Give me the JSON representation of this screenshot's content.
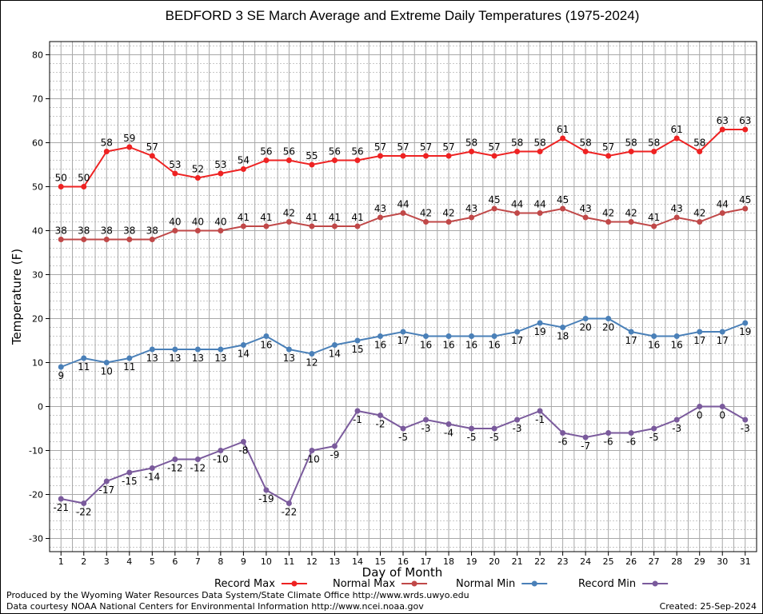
{
  "chart_data": {
    "type": "line",
    "title": "BEDFORD 3 SE March Average and Extreme Daily Temperatures (1975-2024)",
    "xlabel": "Day of Month",
    "ylabel": "Temperature (F)",
    "x": [
      1,
      2,
      3,
      4,
      5,
      6,
      7,
      8,
      9,
      10,
      11,
      12,
      13,
      14,
      15,
      16,
      17,
      18,
      19,
      20,
      21,
      22,
      23,
      24,
      25,
      26,
      27,
      28,
      29,
      30,
      31
    ],
    "xlim": [
      0.5,
      31.5
    ],
    "ylim": [
      -33,
      83
    ],
    "yticks": [
      -30,
      -20,
      -10,
      0,
      10,
      20,
      30,
      40,
      50,
      60,
      70,
      80
    ],
    "grid": true,
    "legend_position": "bottom",
    "series": [
      {
        "name": "Record Max",
        "color": "#ee2222",
        "label_pos": "above",
        "values": [
          50,
          50,
          58,
          59,
          57,
          53,
          52,
          53,
          54,
          56,
          56,
          55,
          56,
          56,
          57,
          57,
          57,
          57,
          58,
          57,
          58,
          58,
          61,
          58,
          57,
          58,
          58,
          61,
          58,
          63,
          63
        ]
      },
      {
        "name": "Normal Max",
        "color": "#c04848",
        "label_pos": "above",
        "values": [
          38,
          38,
          38,
          38,
          38,
          40,
          40,
          40,
          41,
          41,
          42,
          41,
          41,
          41,
          43,
          44,
          42,
          42,
          43,
          45,
          44,
          44,
          45,
          43,
          42,
          42,
          41,
          43,
          42,
          44,
          45
        ]
      },
      {
        "name": "Normal Min",
        "color": "#4a80b8",
        "label_pos": "below",
        "values": [
          9,
          11,
          10,
          11,
          13,
          13,
          13,
          13,
          14,
          16,
          13,
          12,
          14,
          15,
          16,
          17,
          16,
          16,
          16,
          16,
          17,
          19,
          18,
          20,
          20,
          17,
          16,
          16,
          17,
          17,
          19
        ]
      },
      {
        "name": "Record Min",
        "color": "#7a5a9c",
        "label_pos": "below",
        "values": [
          -21,
          -22,
          -17,
          -15,
          -14,
          -12,
          -12,
          -10,
          -8,
          -19,
          -22,
          -10,
          -9,
          -1,
          -2,
          -5,
          -3,
          -4,
          -5,
          -5,
          -3,
          -1,
          -6,
          -7,
          -6,
          -6,
          -5,
          -3,
          0,
          0,
          -3
        ]
      }
    ]
  },
  "footer": {
    "produced_by": "Produced by the Wyoming Water Resources Data System/State Climate Office http://www.wrds.uwyo.edu",
    "data_courtesy": "Data courtesy NOAA National Centers for Environmental Information http://www.ncei.noaa.gov",
    "created": "Created:  25-Sep-2024"
  }
}
